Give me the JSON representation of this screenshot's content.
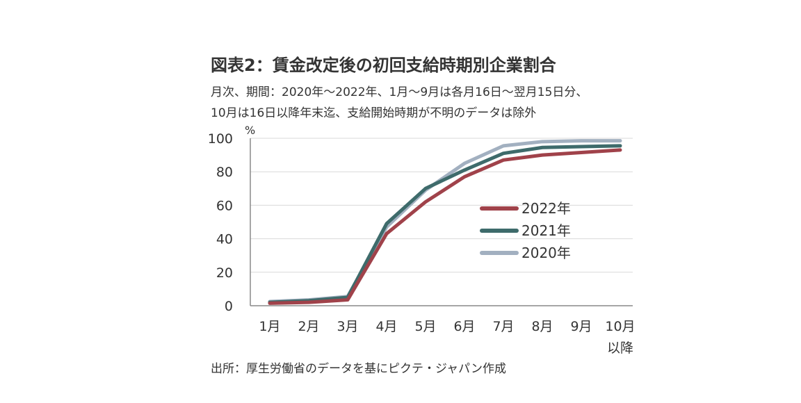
{
  "chart_data": {
    "type": "line",
    "title": "図表2：賃金改定後の初回支給時期別企業割合",
    "subtitle_lines": [
      "月次、期間：2020年～2022年、1月～9月は各月16日～翌月15日分、",
      "10月は16日以降年末迄、支給開始時期が不明のデータは除外"
    ],
    "ylabel": "%",
    "ylim": [
      0,
      100
    ],
    "yticks": [
      "0",
      "20",
      "40",
      "60",
      "80",
      "100"
    ],
    "categories": [
      "1月",
      "2月",
      "3月",
      "4月",
      "5月",
      "6月",
      "7月",
      "8月",
      "9月",
      "10月"
    ],
    "category_sublabels": [
      "",
      "",
      "",
      "",
      "",
      "",
      "",
      "",
      "",
      "以降"
    ],
    "series": [
      {
        "name": "2022年",
        "color": "#a0424a",
        "values": [
          1.5,
          2,
          3.5,
          43,
          62,
          77,
          87,
          90,
          91.5,
          93
        ]
      },
      {
        "name": "2021年",
        "color": "#3e6b6b",
        "values": [
          2,
          3,
          5,
          49,
          70,
          81,
          91,
          94.5,
          95,
          95.5
        ]
      },
      {
        "name": "2020年",
        "color": "#a2b0c0",
        "values": [
          2.5,
          3.5,
          5.5,
          47,
          69,
          85,
          95.5,
          98,
          98.5,
          98.5
        ]
      }
    ],
    "grid": true,
    "legend_position": "right"
  },
  "source": "出所：厚生労働省のデータを基にピクテ・ジャパン作成"
}
